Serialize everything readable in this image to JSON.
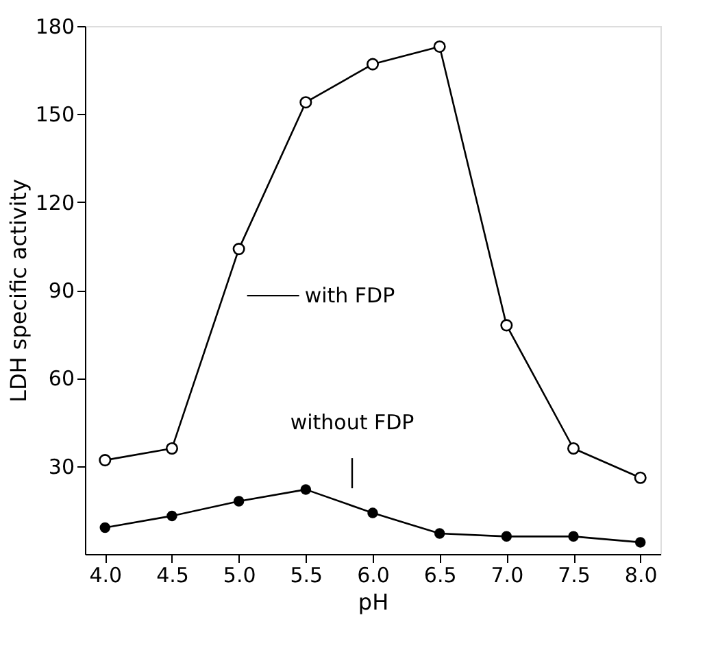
{
  "chart_data": {
    "type": "line",
    "xlabel": "pH",
    "ylabel": "LDH specific activity",
    "x": [
      4.0,
      4.5,
      5.0,
      5.5,
      6.0,
      6.5,
      7.0,
      7.5,
      8.0
    ],
    "series": [
      {
        "name": "with FDP",
        "color": "#000000",
        "values": [
          32,
          36,
          104,
          154,
          167,
          173,
          78,
          36,
          26
        ]
      },
      {
        "name": "without FDP",
        "color": "#000000",
        "values": [
          9,
          13,
          18,
          22,
          14,
          7,
          6,
          6,
          4
        ]
      }
    ],
    "xlim": [
      3.85,
      8.15
    ],
    "xticks": [
      {
        "value": 4.0,
        "label": "4.0"
      },
      {
        "value": 4.5,
        "label": "4.5"
      },
      {
        "value": 5.0,
        "label": "5.0"
      },
      {
        "value": 5.5,
        "label": "5.5"
      },
      {
        "value": 6.0,
        "label": "6.0"
      },
      {
        "value": 6.5,
        "label": "6.5"
      },
      {
        "value": 7.0,
        "label": "7.0"
      },
      {
        "value": 7.5,
        "label": "7.5"
      },
      {
        "value": 8.0,
        "label": "8.0"
      }
    ],
    "ylim": [
      0,
      180
    ],
    "yticks": [
      30,
      60,
      90,
      120,
      150,
      180
    ],
    "marker": "circle",
    "line_style": "solid",
    "grid": false
  }
}
